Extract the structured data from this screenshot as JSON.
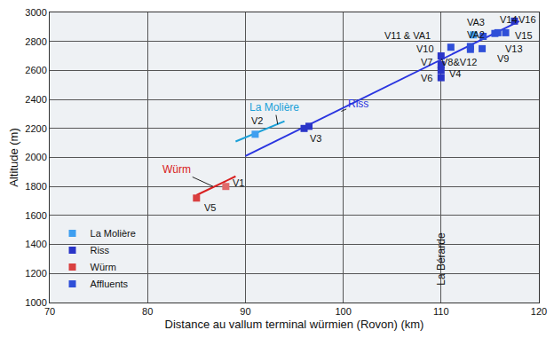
{
  "chart_data": {
    "type": "scatter",
    "x_label": "Distance au vallum terminal würmien (Rovon) (km)",
    "y_label": "Altitude (m)",
    "xlim": [
      70,
      120
    ],
    "xticks": [
      70,
      80,
      90,
      100,
      110,
      120
    ],
    "ylim": [
      1000,
      3000
    ],
    "yticks": [
      1000,
      1200,
      1400,
      1600,
      1800,
      2000,
      2200,
      2400,
      2600,
      2800,
      3000
    ],
    "grid": true,
    "legend": "lower left",
    "marker": "square",
    "series": [
      {
        "name": "La Molière",
        "color": "#3f9ff0",
        "x": [
          91,
          113.3
        ],
        "values": [
          2160,
          2845
        ]
      },
      {
        "name": "Riss",
        "color": "#2a35c8",
        "x": [
          96.0,
          96.5,
          110,
          110,
          110,
          110,
          117.5
        ],
        "values": [
          2200,
          2215,
          2550,
          2600,
          2640,
          2700,
          2940
        ]
      },
      {
        "name": "Würm",
        "color": "#d94040",
        "colors": [
          "#d94040",
          "#e06a6a"
        ],
        "x": [
          85,
          88
        ],
        "values": [
          1720,
          1800
        ]
      },
      {
        "name": "Affluents",
        "color": "#2f4fd8",
        "x": [
          111,
          113,
          113,
          114.2,
          114.3,
          115.5,
          115.8,
          116.6
        ],
        "values": [
          2760,
          2745,
          2765,
          2750,
          2835,
          2855,
          2860,
          2860
        ]
      }
    ],
    "lines": [
      {
        "label": "Würm",
        "color": "#d92020",
        "x": [
          85,
          89
        ],
        "values": [
          1740,
          1870
        ],
        "label_x": 83,
        "label_y": 1915,
        "arrow_x": 86.7,
        "arrow_y": 1800
      },
      {
        "label": "La Molière",
        "color": "#1aa0d8",
        "x": [
          89,
          94
        ],
        "values": [
          2110,
          2250
        ],
        "label_x": 93,
        "label_y": 2345,
        "arrow_x": 93.3,
        "arrow_y": 2228
      },
      {
        "label": "Riss",
        "color": "#2a35e0",
        "x": [
          90,
          118
        ],
        "values": [
          2010,
          2940
        ],
        "label_x": 101.5,
        "label_y": 2370,
        "arrow_x": 99.8,
        "arrow_y": 2318
      }
    ],
    "point_labels": [
      {
        "text": "V1",
        "x": 89.3,
        "y": 1825
      },
      {
        "text": "V5",
        "x": 86.4,
        "y": 1655
      },
      {
        "text": "V2",
        "x": 91.2,
        "y": 2255
      },
      {
        "text": "V3",
        "x": 97.2,
        "y": 2130
      },
      {
        "text": "V6",
        "x": 108.5,
        "y": 2545
      },
      {
        "text": "V4",
        "x": 111.4,
        "y": 2580
      },
      {
        "text": "V7",
        "x": 108.5,
        "y": 2660
      },
      {
        "text": "V8&V12",
        "x": 111.8,
        "y": 2660
      },
      {
        "text": "V10",
        "x": 108.4,
        "y": 2750
      },
      {
        "text": "V11 & VA1",
        "x": 106.6,
        "y": 2840
      },
      {
        "text": "VA3",
        "x": 113.6,
        "y": 2935
      },
      {
        "text": "VA2",
        "x": 113.6,
        "y": 2845
      },
      {
        "text": "V9",
        "x": 116.3,
        "y": 2680
      },
      {
        "text": "V13",
        "x": 117.5,
        "y": 2750
      },
      {
        "text": "V14",
        "x": 116.9,
        "y": 2950
      },
      {
        "text": "V15",
        "x": 118.5,
        "y": 2840
      },
      {
        "text": "V16",
        "x": 118.8,
        "y": 2950
      }
    ],
    "annotations": [
      {
        "text": "La Bérarde",
        "x": 110,
        "y": 1300
      }
    ]
  }
}
